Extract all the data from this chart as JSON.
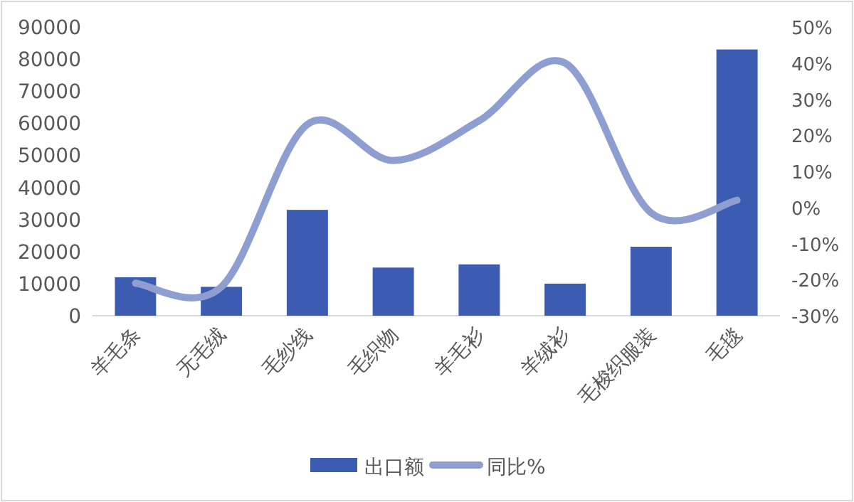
{
  "chart_data": {
    "type": "bar",
    "categories": [
      "羊毛条",
      "无毛绒",
      "毛纱线",
      "毛织物",
      "羊毛衫",
      "羊绒衫",
      "毛梭织服装",
      "毛毯"
    ],
    "series": [
      {
        "name": "出口额",
        "color": "#3b5cb0",
        "values": [
          12000,
          9000,
          33000,
          15000,
          16000,
          10000,
          21500,
          83000
        ]
      },
      {
        "name": "同比%",
        "type": "line",
        "axis": "y2",
        "color": "#8e9ed0",
        "values": [
          -21,
          -22,
          23,
          13,
          24,
          40,
          -1.5,
          2
        ]
      }
    ],
    "ylim": [
      0,
      90000
    ],
    "yticks": [
      0,
      10000,
      20000,
      30000,
      40000,
      50000,
      60000,
      70000,
      80000,
      90000
    ],
    "y2lim": [
      -30,
      50
    ],
    "y2ticks": [
      {
        "value": -30,
        "label": "-30%"
      },
      {
        "value": -20,
        "label": "-20%"
      },
      {
        "value": -10,
        "label": "-10%"
      },
      {
        "value": 0,
        "label": "0%"
      },
      {
        "value": 10,
        "label": "10%"
      },
      {
        "value": 20,
        "label": "20%"
      },
      {
        "value": 30,
        "label": "30%"
      },
      {
        "value": 40,
        "label": "40%"
      },
      {
        "value": 50,
        "label": "50%"
      }
    ],
    "legend": "bottom"
  }
}
